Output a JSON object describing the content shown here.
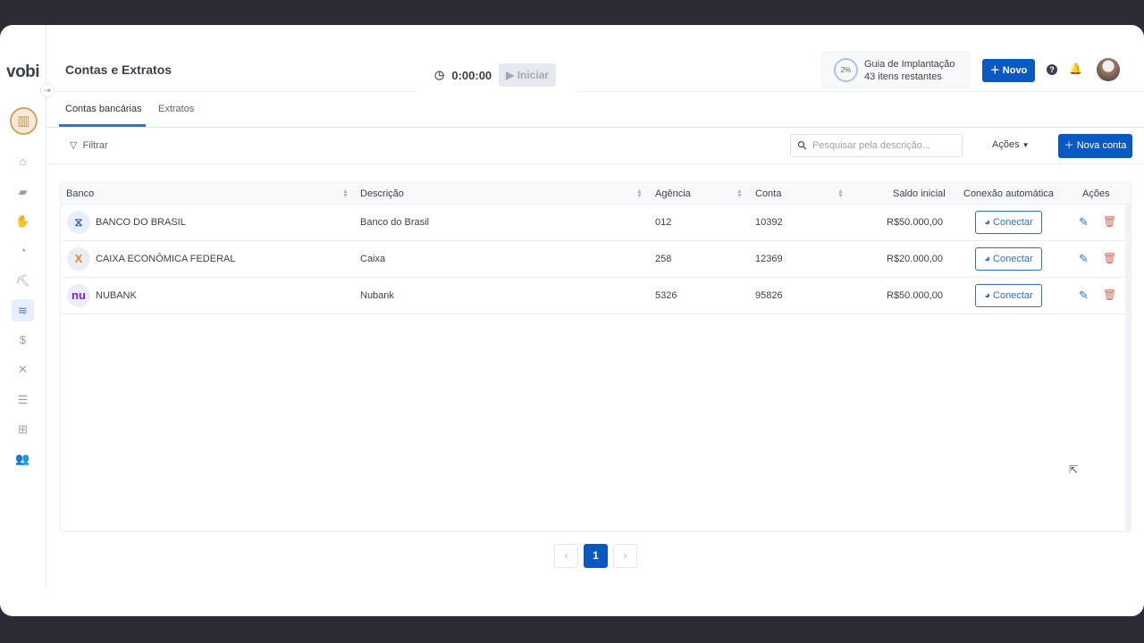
{
  "app": {
    "logo": "vobi",
    "title": "Contas e Extratos"
  },
  "timer": {
    "time": "0:00:00",
    "start_label": "Iniciar"
  },
  "guide": {
    "percent": "2%",
    "title": "Guia de Implantação",
    "subtitle": "43 itens restantes"
  },
  "header": {
    "new_label": "Novo"
  },
  "tabs": [
    {
      "label": "Contas bancárias",
      "active": true
    },
    {
      "label": "Extratos",
      "active": false
    }
  ],
  "toolbar": {
    "filter_label": "Filtrar",
    "search_placeholder": "Pesquisar pela descrição...",
    "actions_label": "Ações",
    "new_account_label": "Nova conta"
  },
  "table": {
    "columns": [
      "Banco",
      "Descrição",
      "Agência",
      "Conta",
      "Saldo inicial",
      "Conexão automática",
      "Ações"
    ],
    "rows": [
      {
        "bank": "BANCO DO BRASIL",
        "description": "Banco do Brasil",
        "agency": "012",
        "account": "10392",
        "balance": "R$50.000,00",
        "connect": "Conectar"
      },
      {
        "bank": "CAIXA ECONÔMICA FEDERAL",
        "description": "Caixa",
        "agency": "258",
        "account": "12369",
        "balance": "R$20.000,00",
        "connect": "Conectar"
      },
      {
        "bank": "NUBANK",
        "description": "Nubank",
        "agency": "5326",
        "account": "95826",
        "balance": "R$50.000,00",
        "connect": "Conectar"
      }
    ]
  },
  "pagination": {
    "current": "1"
  },
  "colors": {
    "primary": "#0a58c2",
    "delete": "#d9685c",
    "sidebar_active": "#e6efff"
  }
}
